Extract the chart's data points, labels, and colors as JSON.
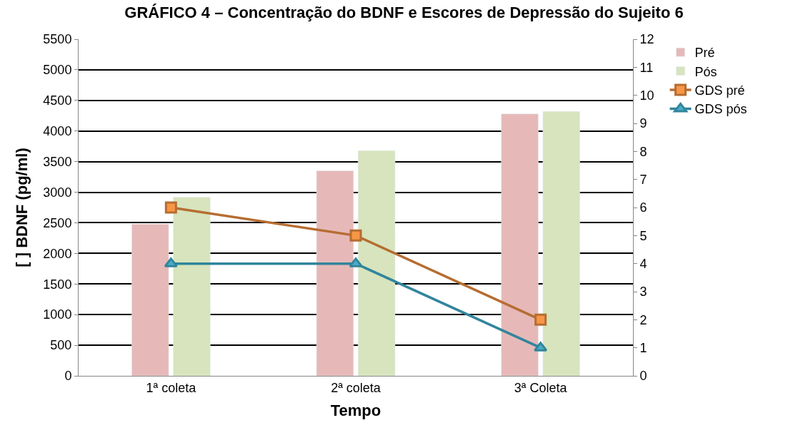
{
  "chart_data": {
    "type": "bar",
    "title": "GRÁFICO 4 – Concentração do BDNF e Escores de Depressão do Sujeito 6",
    "categories": [
      "1ª coleta",
      "2ª coleta",
      "3ª Coleta"
    ],
    "xlabel": "Tempo",
    "ylabel": "[ ] BDNF (pg/ml)",
    "series": [
      {
        "name": "Pré",
        "color": "#e6b9b8",
        "values": [
          2480,
          3350,
          4280
        ]
      },
      {
        "name": "Pós",
        "color": "#d7e4bd",
        "values": [
          2920,
          3680,
          4320
        ]
      },
      {
        "name": "GDS pré",
        "type": "line",
        "axis": "y2",
        "color": "#b66d31",
        "marker": "square",
        "values": [
          6,
          5,
          2
        ]
      },
      {
        "name": "GDS pós",
        "type": "line",
        "axis": "y2",
        "color": "#31859c",
        "marker": "triangle",
        "values": [
          4,
          4,
          1
        ]
      }
    ],
    "ylim": [
      0,
      5500
    ],
    "yticks": [
      0,
      500,
      1000,
      1500,
      2000,
      2500,
      3000,
      3500,
      4000,
      4500,
      5000,
      5500
    ],
    "y2lim": [
      0,
      12
    ],
    "y2ticks": [
      0,
      1,
      2,
      3,
      4,
      5,
      6,
      7,
      8,
      9,
      10,
      11,
      12
    ],
    "grid": "y",
    "legend": "right"
  }
}
